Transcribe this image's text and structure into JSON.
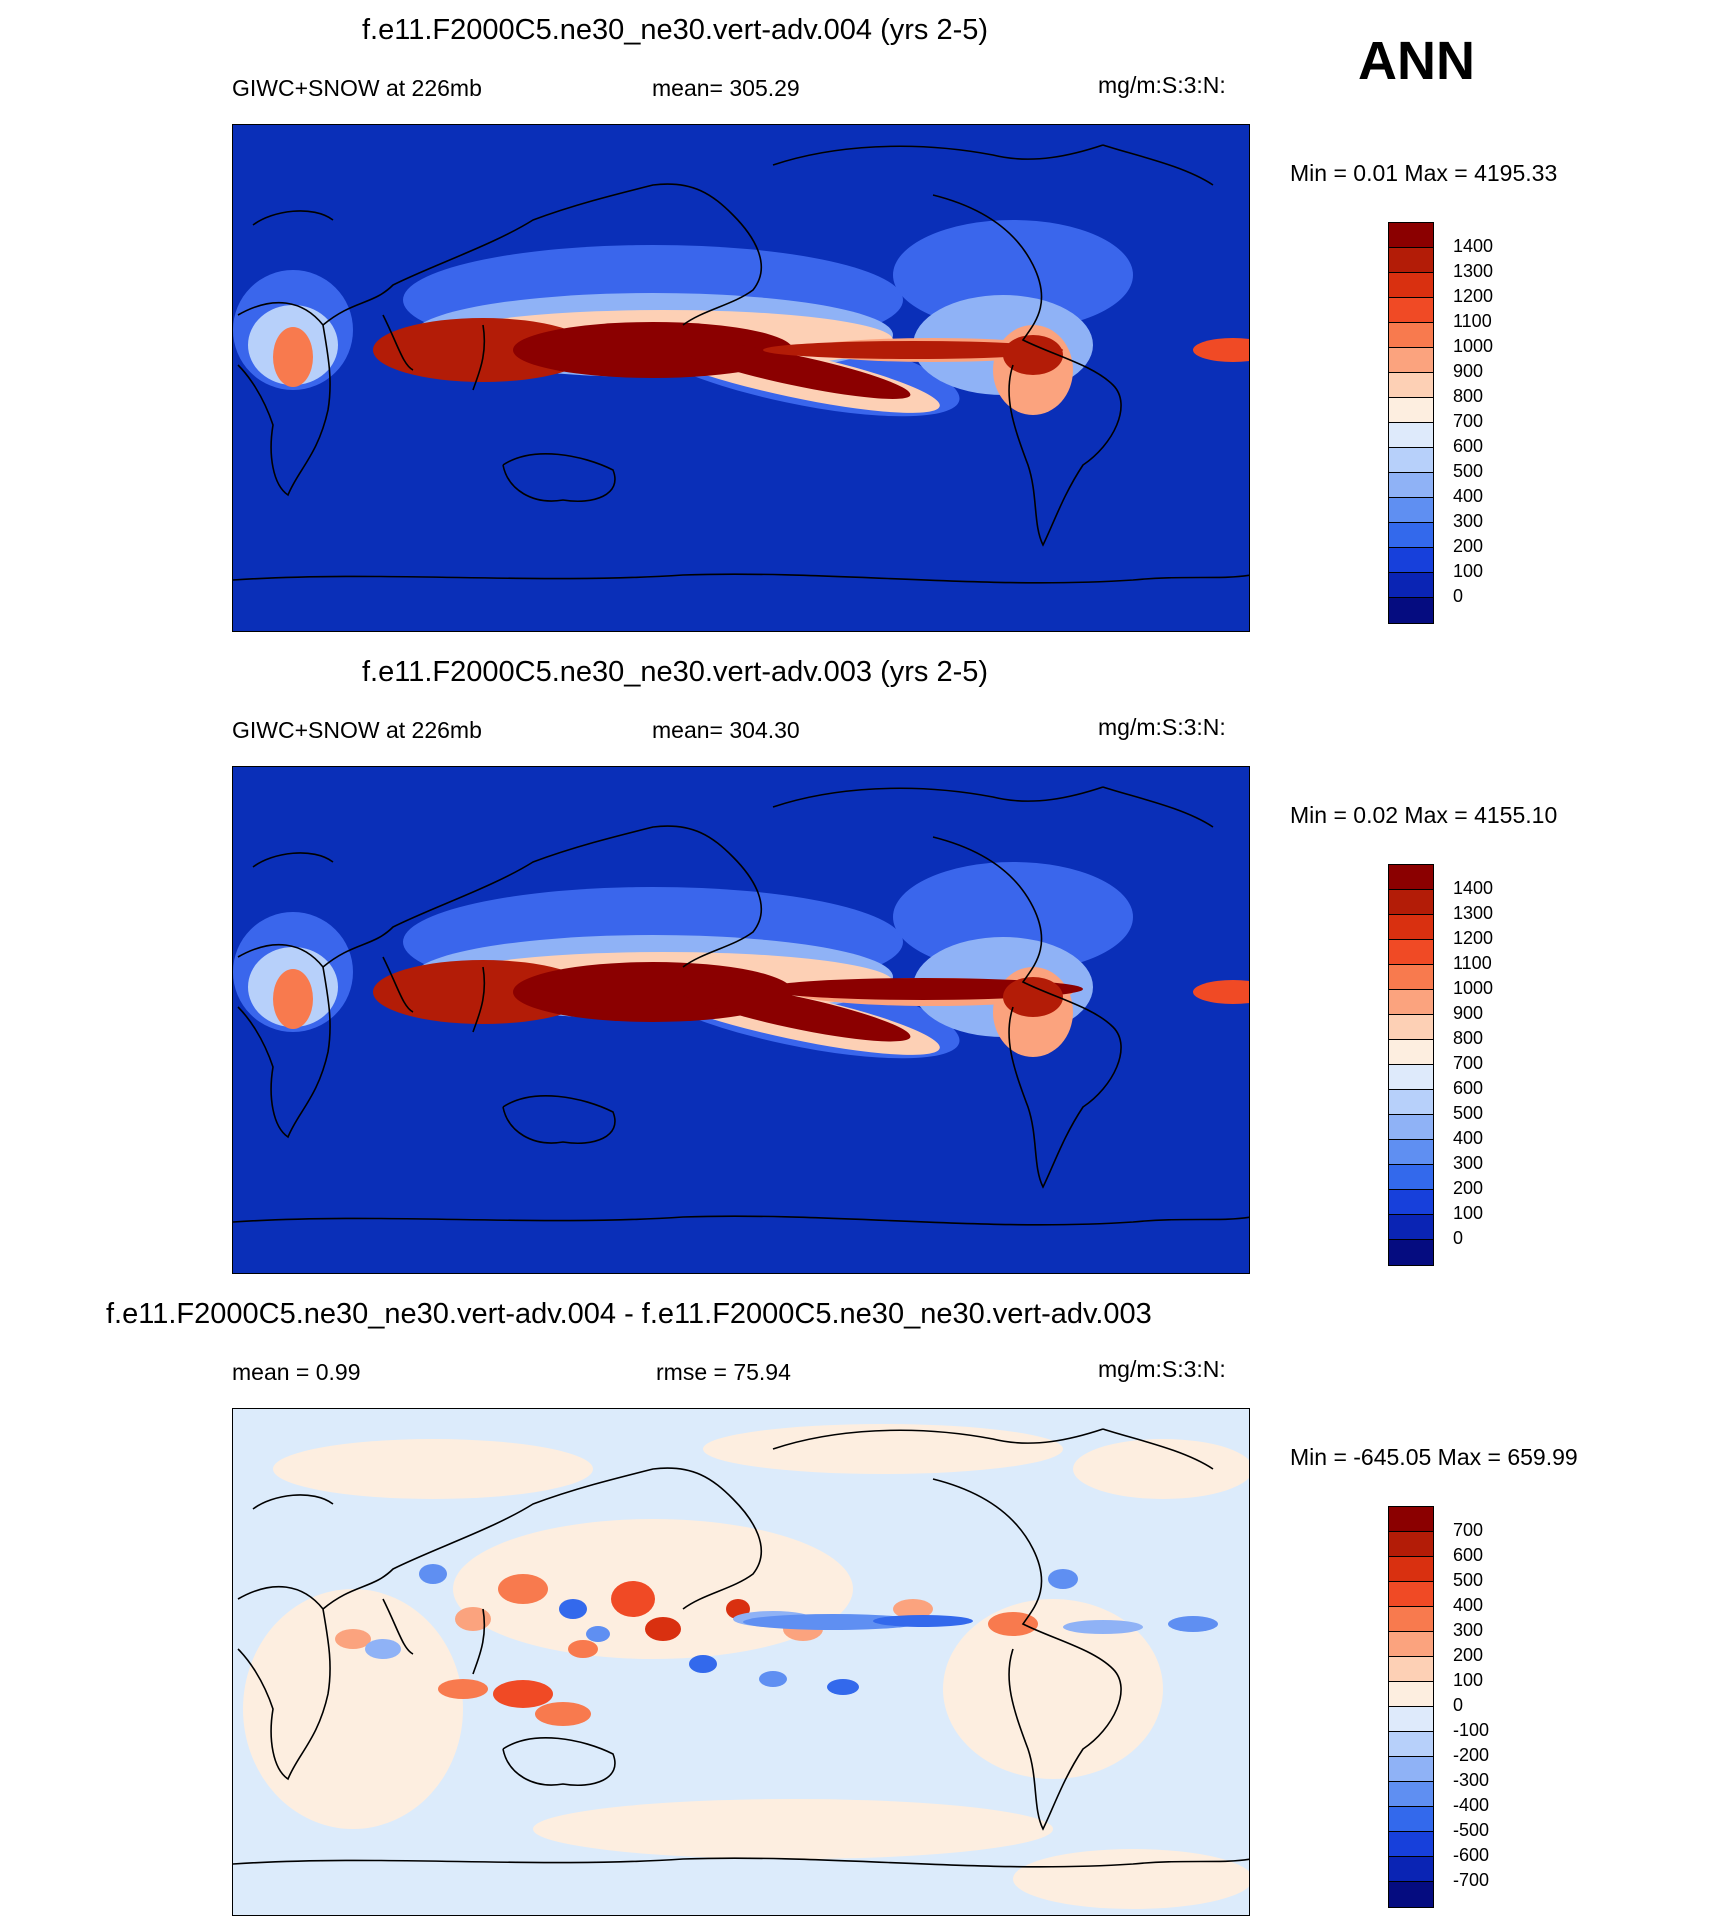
{
  "season": "ANN",
  "panels": [
    {
      "title": "f.e11.F2000C5.ne30_ne30.vert-adv.004 (yrs 2-5)",
      "left_label": "GIWC+SNOW at 226mb",
      "center_label": "mean= 305.29",
      "right_label": "mg/m:S:3:N:",
      "minmax": "Min =   0.01 Max = 4195.33",
      "colorbar_labels": [
        "1400",
        "1300",
        "1200",
        "1100",
        "1000",
        "900",
        "800",
        "700",
        "600",
        "500",
        "400",
        "300",
        "200",
        "100",
        "0"
      ]
    },
    {
      "title": "f.e11.F2000C5.ne30_ne30.vert-adv.003 (yrs 2-5)",
      "left_label": "GIWC+SNOW at 226mb",
      "center_label": "mean= 304.30",
      "right_label": "mg/m:S:3:N:",
      "minmax": "Min =   0.02 Max = 4155.10",
      "colorbar_labels": [
        "1400",
        "1300",
        "1200",
        "1100",
        "1000",
        "900",
        "800",
        "700",
        "600",
        "500",
        "400",
        "300",
        "200",
        "100",
        "0"
      ]
    },
    {
      "title": "f.e11.F2000C5.ne30_ne30.vert-adv.004 - f.e11.F2000C5.ne30_ne30.vert-adv.003",
      "left_label": "mean =   0.99",
      "center_label": "rmse =  75.94",
      "right_label": "mg/m:S:3:N:",
      "minmax": "Min = -645.05 Max = 659.99",
      "colorbar_labels": [
        "700",
        "600",
        "500",
        "400",
        "300",
        "200",
        "100",
        "0",
        "-100",
        "-200",
        "-300",
        "-400",
        "-500",
        "-600",
        "-700"
      ]
    }
  ],
  "colors": {
    "abs_scale": [
      "#8b0000",
      "#b31c07",
      "#d93010",
      "#f04a25",
      "#f87a4e",
      "#fba37e",
      "#fdd0b5",
      "#fdeee0",
      "#deeafb",
      "#b7d0fa",
      "#8fb2f6",
      "#5f8ff2",
      "#3369ec",
      "#1740db",
      "#0a24b4",
      "#050c80"
    ],
    "diff_scale": [
      "#8b0000",
      "#b31c07",
      "#d93010",
      "#f04a25",
      "#f87a4e",
      "#fba37e",
      "#fdd0b5",
      "#fdeee0",
      "#deeafb",
      "#b7d0fa",
      "#8fb2f6",
      "#5f8ff2",
      "#3369ec",
      "#1740db",
      "#0a24b4",
      "#050c80"
    ],
    "ocean_low": "#0a2fb8",
    "diff_background": "#dcebfb"
  }
}
